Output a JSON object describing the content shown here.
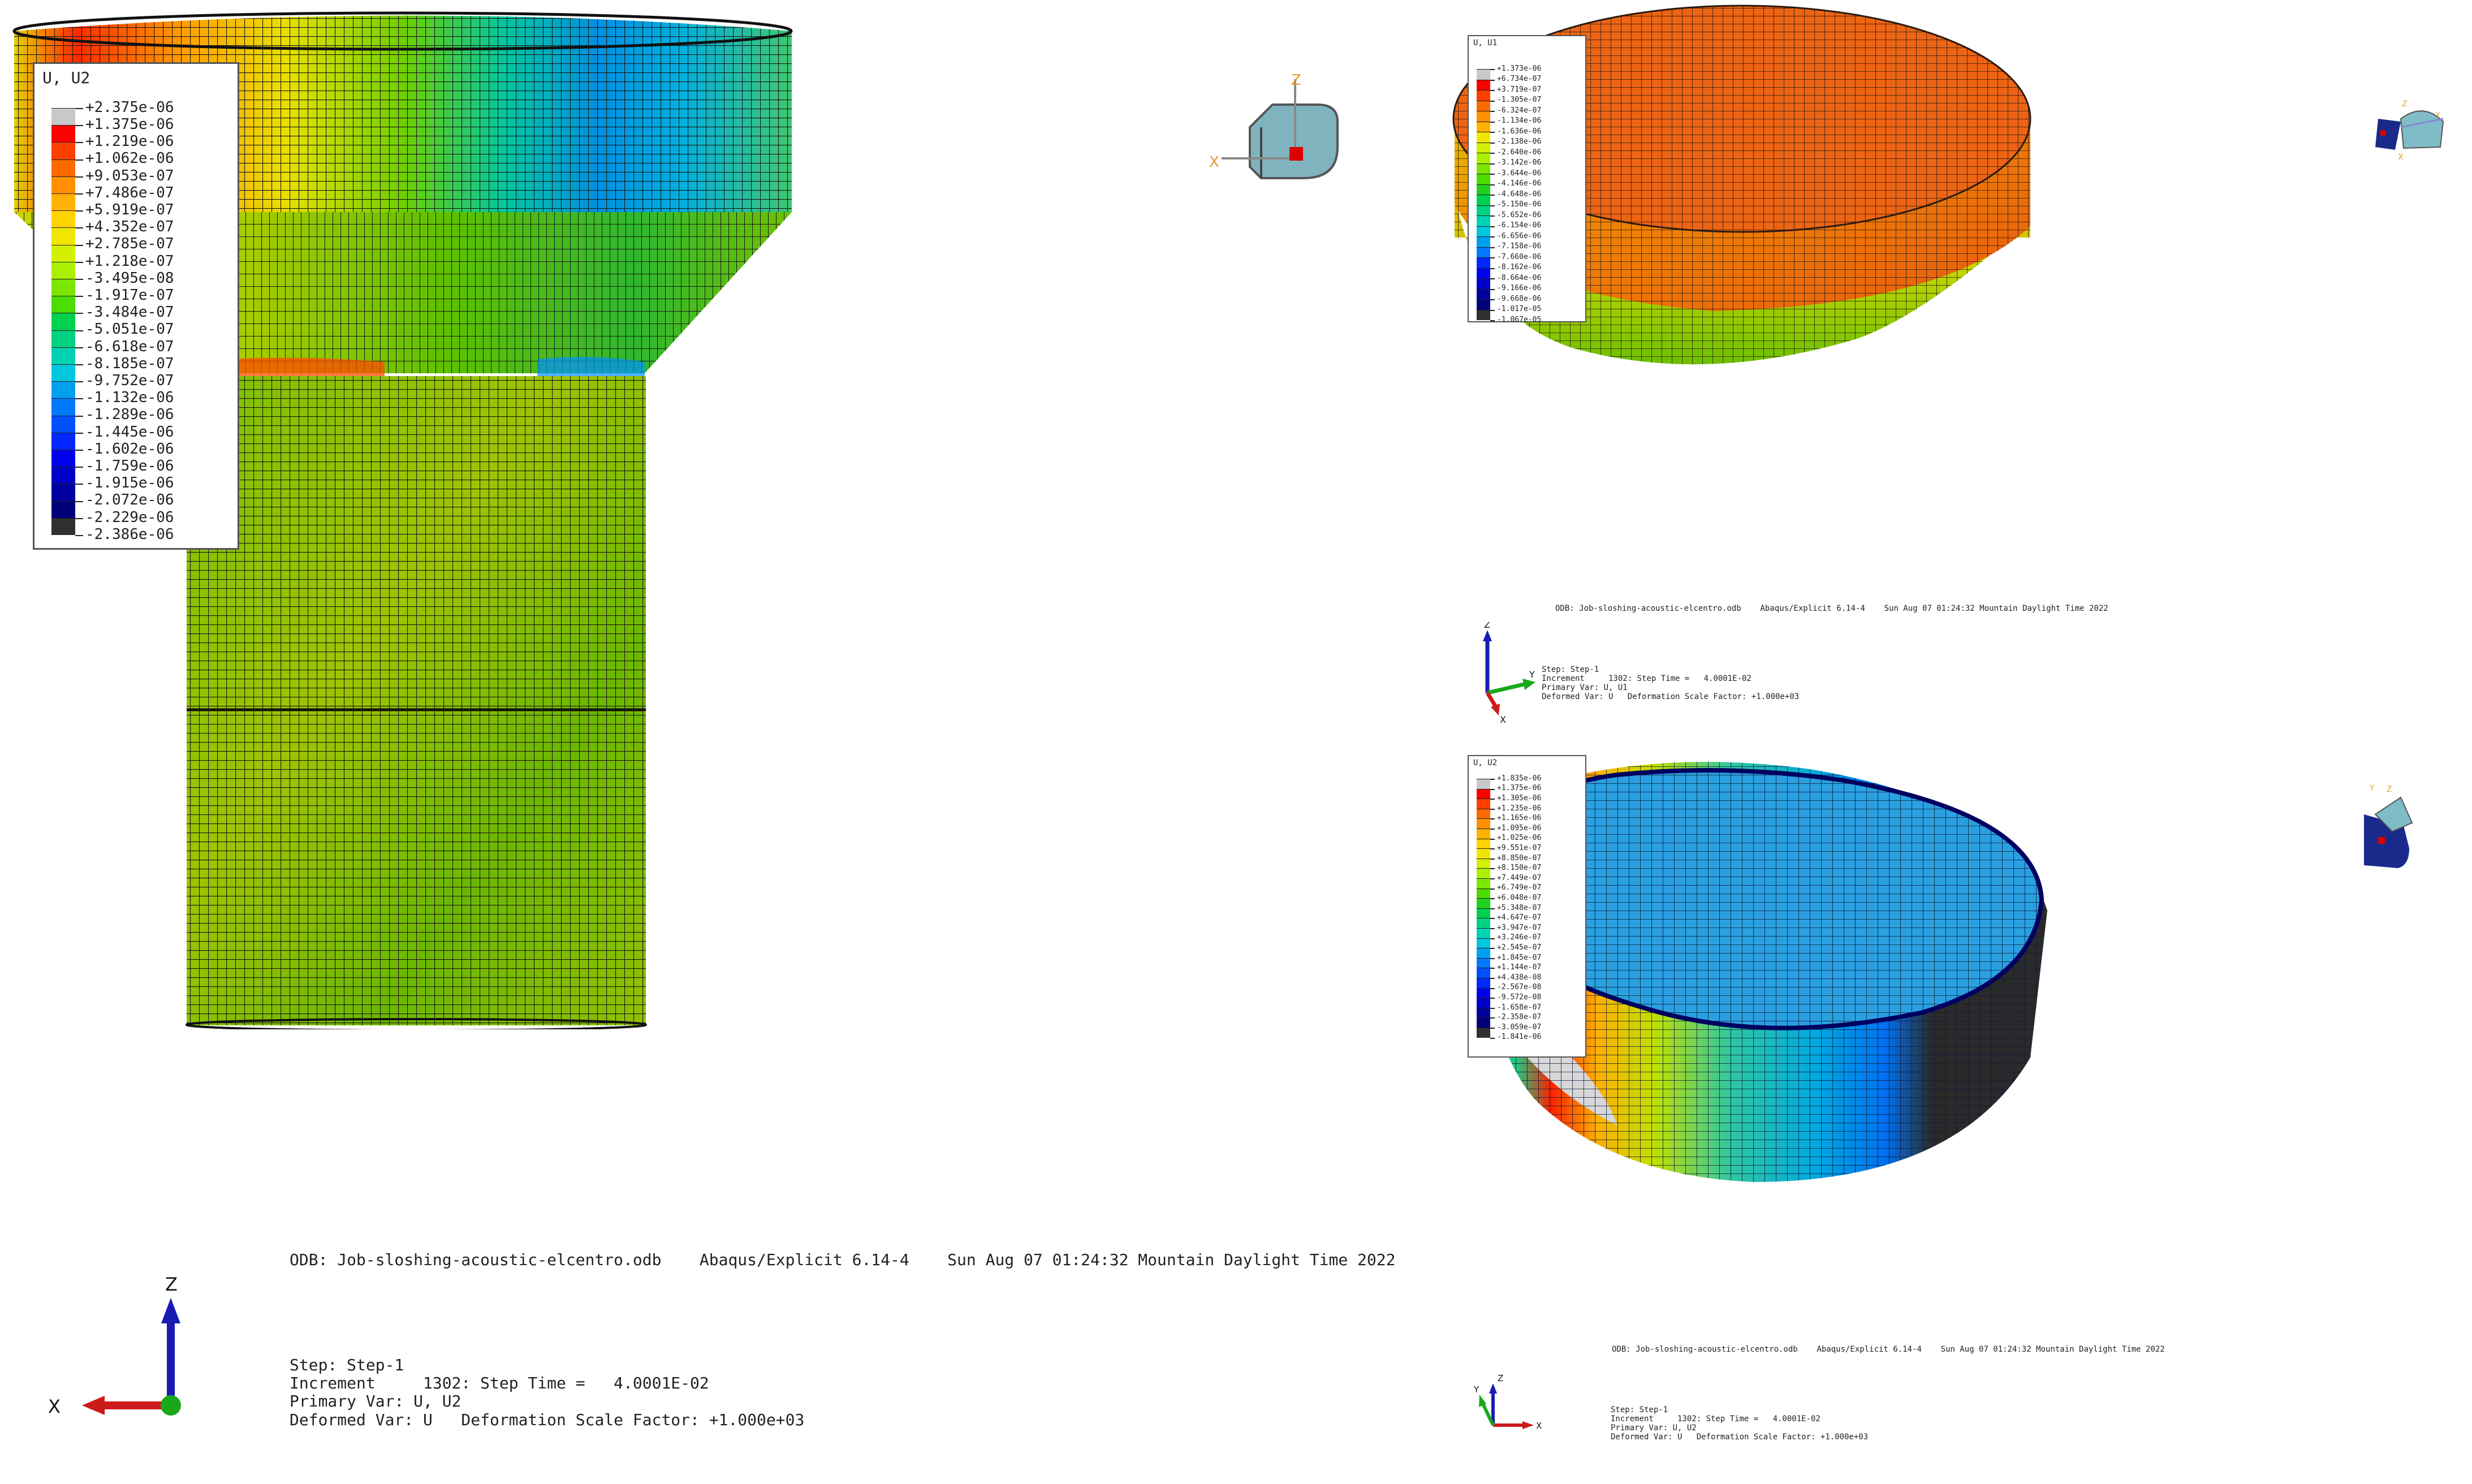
{
  "left_view": {
    "legend": {
      "title": "U, U2",
      "values": [
        "+2.375e-06",
        "+1.375e-06",
        "+1.219e-06",
        "+1.062e-06",
        "+9.053e-07",
        "+7.486e-07",
        "+5.919e-07",
        "+4.352e-07",
        "+2.785e-07",
        "+1.218e-07",
        "-3.495e-08",
        "-1.917e-07",
        "-3.484e-07",
        "-5.051e-07",
        "-6.618e-07",
        "-8.185e-07",
        "-9.752e-07",
        "-1.132e-06",
        "-1.289e-06",
        "-1.445e-06",
        "-1.602e-06",
        "-1.759e-06",
        "-1.915e-06",
        "-2.072e-06",
        "-2.229e-06",
        "-2.386e-06"
      ]
    },
    "odb_line": "ODB: Job-sloshing-acoustic-elcentro.odb    Abaqus/Explicit 6.14-4    Sun Aug 07 01:24:32 Mountain Daylight Time 2022",
    "step_lines": [
      "Step: Step-1",
      "Increment     1302: Step Time =   4.0001E-02",
      "Primary Var: U, U2",
      "Deformed Var: U   Deformation Scale Factor: +1.000e+03"
    ],
    "triad": {
      "vertical": "Z",
      "horizontal": "X"
    },
    "view_cube": {
      "vertical": "Z",
      "horizontal": "X"
    }
  },
  "top_right_view": {
    "legend": {
      "title": "U, U1",
      "values": [
        "+1.373e-06",
        "+6.734e-07",
        "+3.719e-07",
        "-1.305e-07",
        "-6.324e-07",
        "-1.134e-06",
        "-1.636e-06",
        "-2.138e-06",
        "-2.640e-06",
        "-3.142e-06",
        "-3.644e-06",
        "-4.146e-06",
        "-4.648e-06",
        "-5.150e-06",
        "-5.652e-06",
        "-6.154e-06",
        "-6.656e-06",
        "-7.158e-06",
        "-7.660e-06",
        "-8.162e-06",
        "-8.664e-06",
        "-9.166e-06",
        "-9.668e-06",
        "-1.017e-05",
        "-1.067e-05"
      ]
    },
    "odb_line": "ODB: Job-sloshing-acoustic-elcentro.odb    Abaqus/Explicit 6.14-4    Sun Aug 07 01:24:32 Mountain Daylight Time 2022",
    "step_lines": [
      "Step: Step-1",
      "Increment     1302: Step Time =   4.0001E-02",
      "Primary Var: U, U1",
      "Deformed Var: U   Deformation Scale Factor: +1.000e+03"
    ],
    "triad": {
      "vertical": "Z",
      "horizontal": "Y",
      "third": "X"
    },
    "view_cube": {
      "a": "Z",
      "b": "Y",
      "c": "X"
    }
  },
  "bottom_right_view": {
    "legend": {
      "title": "U, U2",
      "values": [
        "+1.835e-06",
        "+1.375e-06",
        "+1.305e-06",
        "+1.235e-06",
        "+1.165e-06",
        "+1.095e-06",
        "+1.025e-06",
        "+9.551e-07",
        "+8.850e-07",
        "+8.150e-07",
        "+7.449e-07",
        "+6.749e-07",
        "+6.048e-07",
        "+5.348e-07",
        "+4.647e-07",
        "+3.947e-07",
        "+3.246e-07",
        "+2.545e-07",
        "+1.845e-07",
        "+1.144e-07",
        "+4.438e-08",
        "-2.567e-08",
        "-9.572e-08",
        "-1.658e-07",
        "-2.358e-07",
        "-3.059e-07",
        "-1.841e-06"
      ]
    },
    "odb_line": "ODB: Job-sloshing-acoustic-elcentro.odb    Abaqus/Explicit 6.14-4    Sun Aug 07 01:24:32 Mountain Daylight Time 2022",
    "step_lines": [
      "Step: Step-1",
      "Increment     1302: Step Time =   4.0001E-02",
      "Primary Var: U, U2",
      "Deformed Var: U   Deformation Scale Factor: +1.000e+03"
    ],
    "triad": {
      "vertical": "Z",
      "horizontal": "X",
      "third": "Y"
    },
    "view_cube": {
      "a": "Z",
      "b": "Y"
    }
  },
  "colors": {
    "contour_scale": [
      "#c8c8c8",
      "#ff0000",
      "#ff3f00",
      "#ff6a00",
      "#ff8f00",
      "#ffb200",
      "#ffd200",
      "#f0e600",
      "#d2f000",
      "#aaf000",
      "#7de600",
      "#4cdc00",
      "#1ed21e",
      "#00d250",
      "#00d282",
      "#00d2b4",
      "#00c8dc",
      "#00a0f0",
      "#0078ff",
      "#0050ff",
      "#0028ff",
      "#0000f0",
      "#0000c8",
      "#0000a0",
      "#000078",
      "#303030"
    ],
    "mesh": "#1a1a1a"
  }
}
